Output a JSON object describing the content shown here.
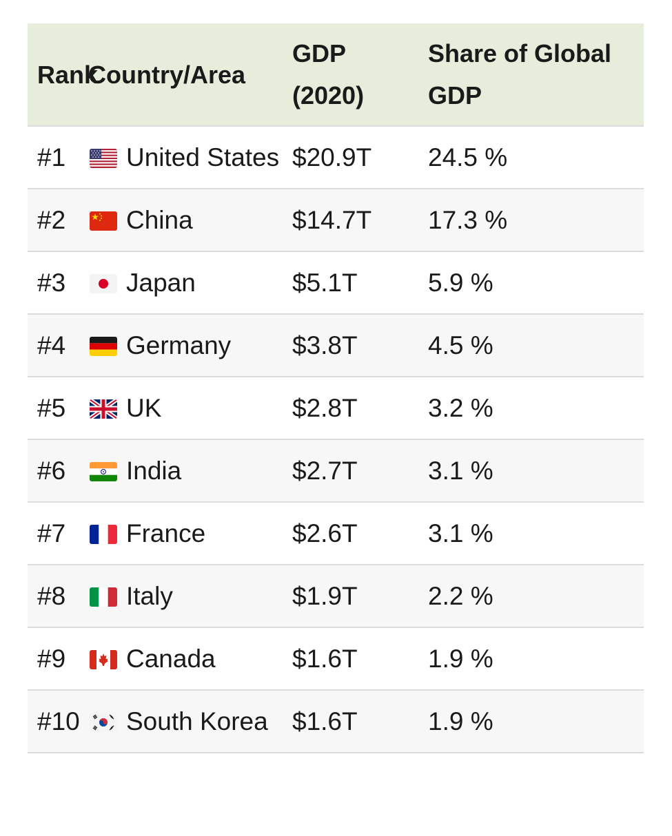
{
  "table": {
    "headers": {
      "rank": "Rank",
      "country": "Country/Area",
      "gdp": "GDP (2020)",
      "share": "Share of Global GDP"
    },
    "rows": [
      {
        "rank": "#1",
        "flag": "us-flag-icon",
        "country": "United States",
        "gdp": "$20.9T",
        "share": "24.5 %"
      },
      {
        "rank": "#2",
        "flag": "china-flag-icon",
        "country": "China",
        "gdp": "$14.7T",
        "share": "17.3 %"
      },
      {
        "rank": "#3",
        "flag": "japan-flag-icon",
        "country": "Japan",
        "gdp": "$5.1T",
        "share": "5.9 %"
      },
      {
        "rank": "#4",
        "flag": "germany-flag-icon",
        "country": "Germany",
        "gdp": "$3.8T",
        "share": "4.5 %"
      },
      {
        "rank": "#5",
        "flag": "uk-flag-icon",
        "country": "UK",
        "gdp": "$2.8T",
        "share": "3.2 %"
      },
      {
        "rank": "#6",
        "flag": "india-flag-icon",
        "country": "India",
        "gdp": "$2.7T",
        "share": "3.1 %"
      },
      {
        "rank": "#7",
        "flag": "france-flag-icon",
        "country": "France",
        "gdp": "$2.6T",
        "share": "3.1 %"
      },
      {
        "rank": "#8",
        "flag": "italy-flag-icon",
        "country": "Italy",
        "gdp": "$1.9T",
        "share": "2.2 %"
      },
      {
        "rank": "#9",
        "flag": "canada-flag-icon",
        "country": "Canada",
        "gdp": "$1.6T",
        "share": "1.9 %"
      },
      {
        "rank": "#10",
        "flag": "south-korea-flag-icon",
        "country": "South Korea",
        "gdp": "$1.6T",
        "share": "1.9 %"
      }
    ]
  },
  "colors": {
    "header_bg": "#e6eedb",
    "alt_row_bg": "#f7f7f7",
    "row_border": "#dcdcdc"
  }
}
